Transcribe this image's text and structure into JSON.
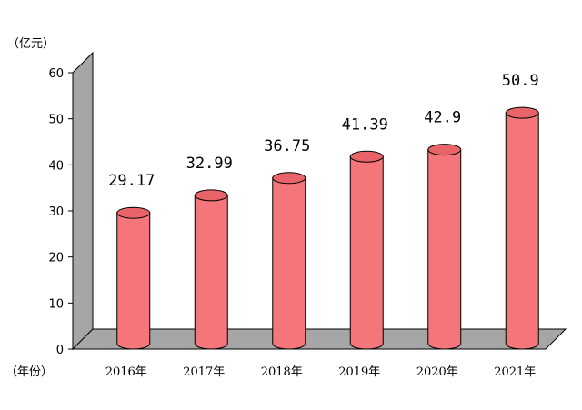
{
  "chart_data": {
    "type": "bar",
    "style": "3d-cylinder",
    "y_unit_label": "（亿元）",
    "x_unit_label": "（年份）",
    "categories": [
      "2016年",
      "2017年",
      "2018年",
      "2019年",
      "2020年",
      "2021年"
    ],
    "values": [
      29.17,
      32.99,
      36.75,
      41.39,
      42.9,
      50.9
    ],
    "data_labels": [
      "29.17",
      "32.99",
      "36.75",
      "41.39",
      "42.9",
      "50.9"
    ],
    "yticks": [
      "0",
      "10",
      "20",
      "30",
      "40",
      "50",
      "60"
    ],
    "ylim": [
      0,
      60
    ],
    "grid": false,
    "legend": "none",
    "colors": {
      "bar_body": "#f4767a",
      "bar_top": "#e86468",
      "bar_edge": "#000000",
      "wall": "#a6a6a6",
      "floor": "#a6a6a6"
    }
  }
}
